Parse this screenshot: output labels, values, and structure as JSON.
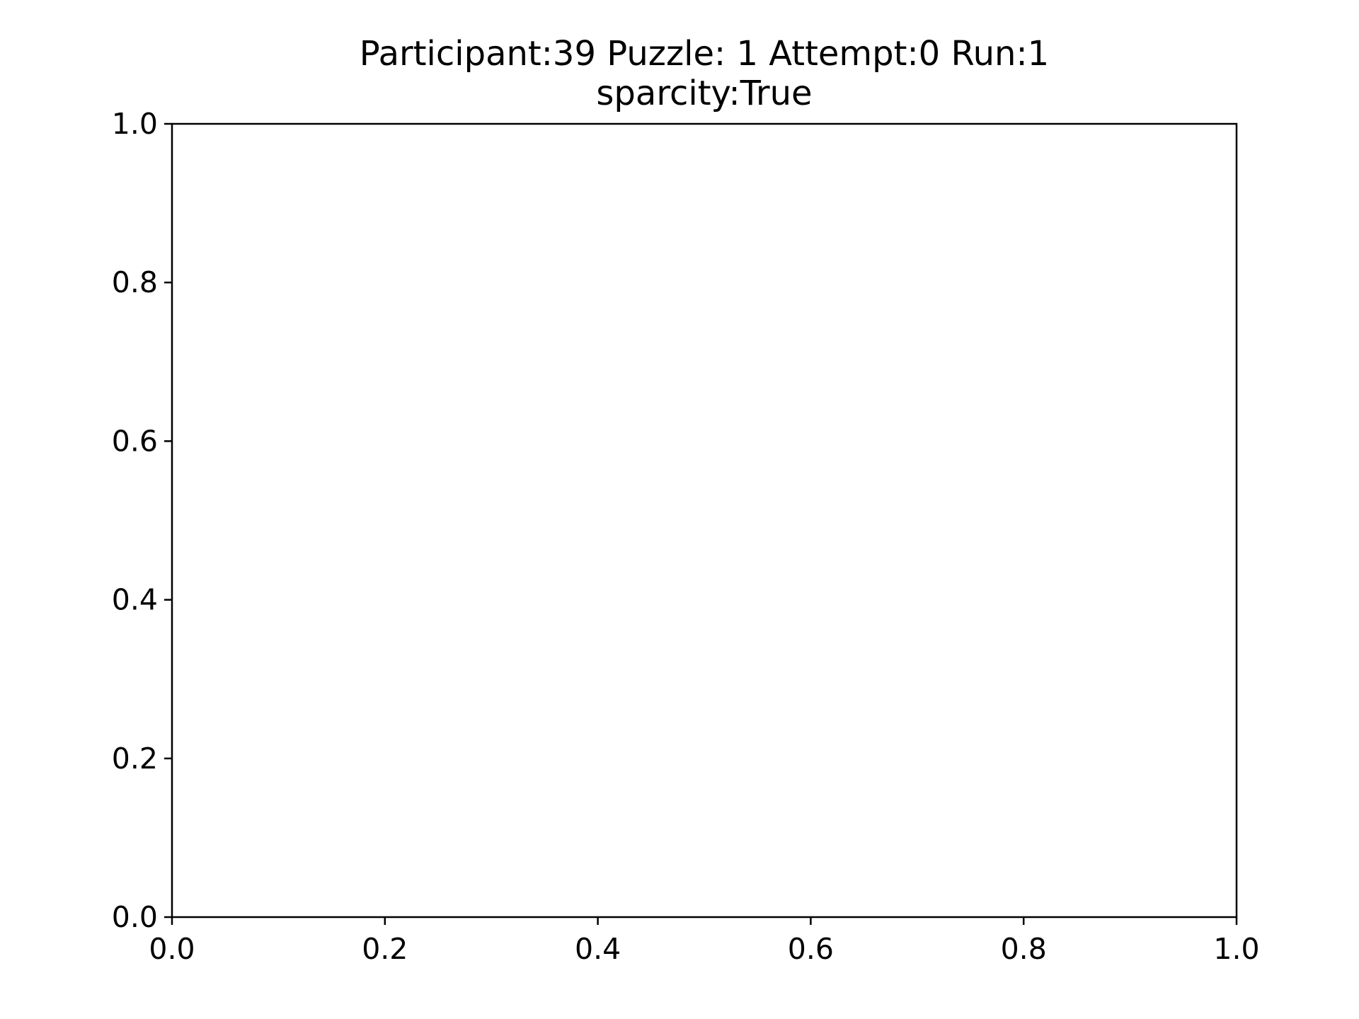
{
  "chart_data": {
    "type": "line",
    "title": "Participant:39 Puzzle: 1 Attempt:0 Run:1",
    "subtitle": "sparcity:True",
    "xlabel": "",
    "ylabel": "",
    "xlim": [
      0.0,
      1.0
    ],
    "ylim": [
      0.0,
      1.0
    ],
    "xticks": [
      "0.0",
      "0.2",
      "0.4",
      "0.6",
      "0.8",
      "1.0"
    ],
    "yticks": [
      "0.0",
      "0.2",
      "0.4",
      "0.6",
      "0.8",
      "1.0"
    ],
    "grid": false,
    "series": []
  },
  "colors": {
    "axis": "#000000",
    "background": "#ffffff"
  }
}
